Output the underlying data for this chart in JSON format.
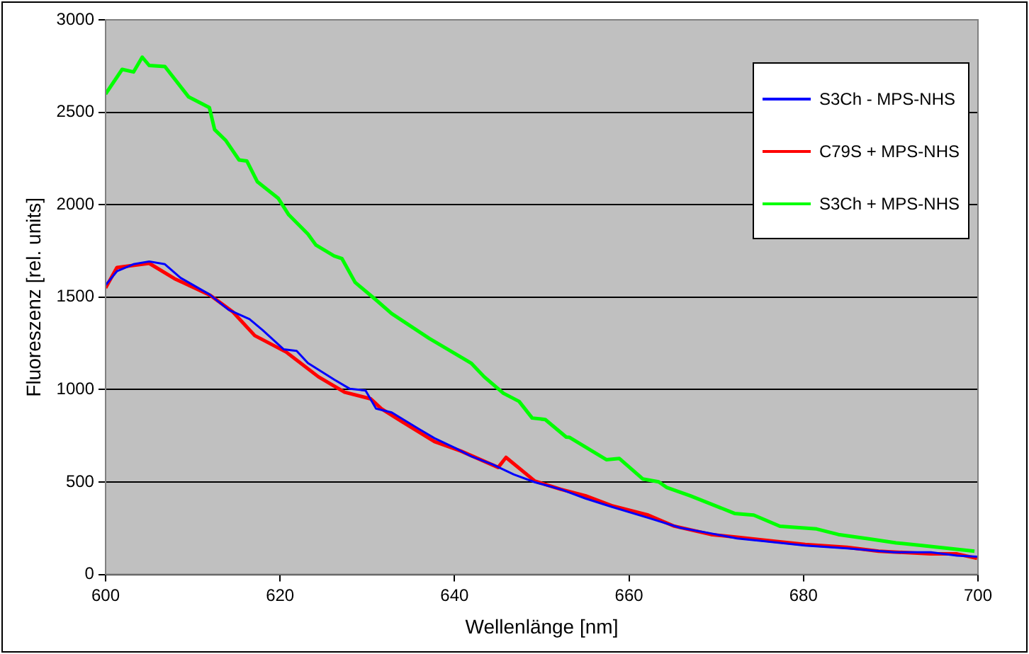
{
  "chart_data": {
    "type": "line",
    "xlabel": "Wellenlänge [nm]",
    "ylabel": "Fluoreszenz [rel. units]",
    "xlim": [
      600,
      700
    ],
    "xticks": [
      600,
      620,
      640,
      660,
      680,
      700
    ],
    "ylim": [
      0,
      3000
    ],
    "yticks": [
      0,
      500,
      1000,
      1500,
      2000,
      2500,
      3000
    ],
    "grid": "y",
    "legend": "right",
    "marker": "none",
    "line_style": "solid",
    "series": [
      {
        "name": "S3Ch - MPS-NHS",
        "color": "#0000ff",
        "x": [
          600,
          601.3,
          603.2,
          605,
          606.8,
          608.6,
          611.9,
          614.1,
          616.5,
          618,
          620.4,
          621.9,
          623.2,
          626.2,
          628,
          629.8,
          631,
          632.8,
          635.9,
          637.7,
          640.1,
          641.9,
          644.4,
          646.8,
          649.2,
          652.2,
          655,
          658,
          662.2,
          665.9,
          669.4,
          672.4,
          675.4,
          680.2,
          685,
          690.4,
          694.6,
          697.6,
          699.9
        ],
        "values": [
          1565,
          1640,
          1678,
          1693,
          1678,
          1604,
          1515,
          1432,
          1381,
          1322,
          1218,
          1209,
          1143,
          1054,
          1004,
          995,
          897,
          876,
          787,
          737,
          683,
          639,
          594,
          541,
          499,
          460,
          411,
          366,
          306,
          252,
          222,
          195,
          180,
          156,
          141,
          120,
          120,
          102,
          96
        ]
      },
      {
        "name": "C79S + MPS-NHS",
        "color": "#ff0000",
        "x": [
          600,
          601.3,
          605,
          607.9,
          612,
          614.6,
          617.1,
          620.7,
          624.4,
          627.4,
          630.4,
          631.6,
          633.8,
          637.7,
          640.7,
          645,
          645.9,
          649.2,
          652.2,
          655,
          658,
          662.2,
          665.2,
          669.4,
          672.4,
          675.4,
          680.2,
          685,
          688.6,
          694.6,
          697.6,
          699.9
        ],
        "values": [
          1550,
          1660,
          1683,
          1600,
          1510,
          1420,
          1292,
          1203,
          1069,
          986,
          950,
          897,
          832,
          719,
          668,
          579,
          633,
          505,
          460,
          426,
          372,
          321,
          261,
          216,
          201,
          186,
          162,
          147,
          126,
          111,
          111,
          87
        ]
      },
      {
        "name": "S3Ch + MPS-NHS",
        "color": "#00ff00",
        "x": [
          600,
          601.9,
          603.2,
          604.2,
          605,
          606.8,
          609.5,
          611.9,
          612.5,
          613.8,
          615.3,
          616.2,
          617.4,
          619.8,
          621,
          623.2,
          624.1,
          626.2,
          627.1,
          628.6,
          631,
          632.8,
          637.1,
          641.9,
          643.4,
          645.6,
          647.4,
          648.9,
          650.4,
          652.8,
          653.2,
          657.4,
          658.9,
          661.6,
          663.4,
          664.3,
          667,
          669.4,
          672.1,
          674.3,
          677.3,
          681.5,
          684,
          687.6,
          690.6,
          693.6,
          696.6,
          699.6
        ],
        "values": [
          2599,
          2732,
          2718,
          2798,
          2753,
          2747,
          2584,
          2525,
          2406,
          2346,
          2242,
          2236,
          2124,
          2034,
          1945,
          1841,
          1782,
          1723,
          1708,
          1580,
          1485,
          1411,
          1277,
          1143,
          1069,
          980,
          936,
          846,
          838,
          743,
          741,
          621,
          627,
          516,
          501,
          471,
          426,
          381,
          330,
          321,
          261,
          246,
          216,
          192,
          171,
          156,
          141,
          126
        ]
      }
    ]
  }
}
